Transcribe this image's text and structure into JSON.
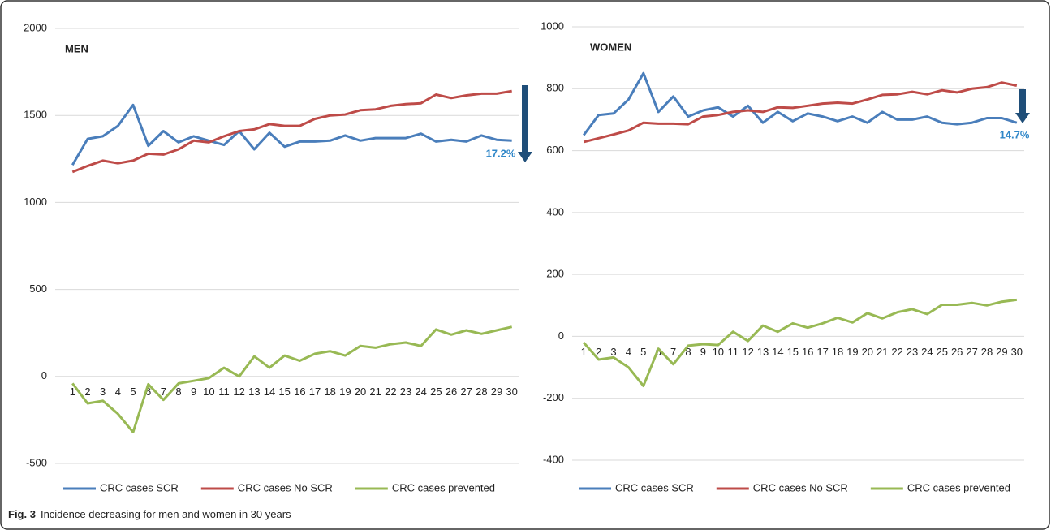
{
  "chart_data": [
    {
      "type": "line",
      "title": "MEN",
      "categories": [
        1,
        2,
        3,
        4,
        5,
        6,
        7,
        8,
        9,
        10,
        11,
        12,
        13,
        14,
        15,
        16,
        17,
        18,
        19,
        20,
        21,
        22,
        23,
        24,
        25,
        26,
        27,
        28,
        29,
        30
      ],
      "series": [
        {
          "name": "CRC cases SCR",
          "color": "#4a7ebb",
          "values": [
            1215,
            1365,
            1380,
            1440,
            1560,
            1325,
            1410,
            1345,
            1380,
            1355,
            1330,
            1410,
            1305,
            1400,
            1320,
            1350,
            1350,
            1355,
            1385,
            1355,
            1370,
            1370,
            1370,
            1395,
            1350,
            1360,
            1350,
            1385,
            1360,
            1355
          ]
        },
        {
          "name": "CRC cases No SCR",
          "color": "#be4b48",
          "values": [
            1175,
            1210,
            1240,
            1225,
            1240,
            1280,
            1275,
            1305,
            1355,
            1345,
            1380,
            1410,
            1420,
            1450,
            1440,
            1440,
            1480,
            1500,
            1505,
            1530,
            1535,
            1555,
            1565,
            1570,
            1620,
            1600,
            1615,
            1625,
            1625,
            1640
          ]
        },
        {
          "name": "CRC cases prevented",
          "color": "#98b954",
          "values": [
            -40,
            -155,
            -140,
            -215,
            -320,
            -45,
            -135,
            -40,
            -25,
            -10,
            50,
            0,
            115,
            50,
            120,
            90,
            130,
            145,
            120,
            175,
            165,
            185,
            195,
            175,
            270,
            240,
            265,
            245,
            265,
            285
          ]
        }
      ],
      "ylim": [
        -500,
        2000
      ],
      "yticks": [
        -500,
        0,
        500,
        1000,
        1500,
        2000
      ],
      "grid": true,
      "annotation": "17.2%",
      "legend": "bottom"
    },
    {
      "type": "line",
      "title": "WOMEN",
      "categories": [
        1,
        2,
        3,
        4,
        5,
        6,
        7,
        8,
        9,
        10,
        11,
        12,
        13,
        14,
        15,
        16,
        17,
        18,
        19,
        20,
        21,
        22,
        23,
        24,
        25,
        26,
        27,
        28,
        29,
        30
      ],
      "series": [
        {
          "name": "CRC cases SCR",
          "color": "#4a7ebb",
          "values": [
            650,
            715,
            720,
            765,
            850,
            725,
            775,
            710,
            730,
            740,
            710,
            745,
            690,
            725,
            695,
            720,
            710,
            695,
            710,
            690,
            725,
            700,
            700,
            710,
            690,
            685,
            690,
            705,
            705,
            690
          ]
        },
        {
          "name": "CRC cases No SCR",
          "color": "#be4b48",
          "values": [
            628,
            640,
            652,
            665,
            690,
            687,
            687,
            685,
            710,
            715,
            725,
            730,
            725,
            740,
            738,
            745,
            752,
            755,
            752,
            765,
            780,
            782,
            790,
            782,
            795,
            788,
            800,
            805,
            820,
            810
          ]
        },
        {
          "name": "CRC cases prevented",
          "color": "#98b954",
          "values": [
            -20,
            -75,
            -68,
            -100,
            -160,
            -40,
            -90,
            -30,
            -25,
            -28,
            15,
            -15,
            35,
            15,
            42,
            28,
            42,
            60,
            45,
            75,
            58,
            78,
            88,
            72,
            102,
            102,
            108,
            100,
            112,
            118
          ]
        }
      ],
      "ylim": [
        -400,
        1000
      ],
      "yticks": [
        -400,
        -200,
        0,
        200,
        400,
        600,
        800,
        1000
      ],
      "grid": true,
      "annotation": "14.7%",
      "legend": "bottom"
    }
  ],
  "caption": {
    "label": "Fig. 3",
    "text": "Incidence decreasing for men and women in 30 years"
  }
}
